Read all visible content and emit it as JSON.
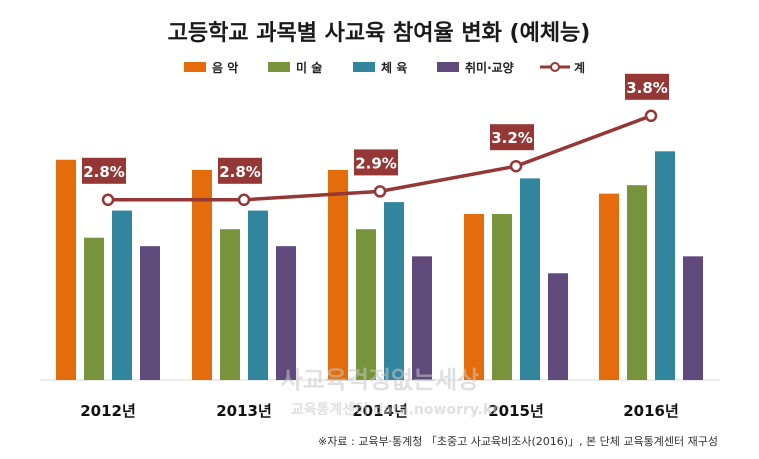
{
  "chart_data": {
    "type": "bar",
    "title": "고등학교 과목별 사교육 참여율 변화 (예체능)",
    "categories": [
      "2012년",
      "2013년",
      "2014년",
      "2015년",
      "2016년"
    ],
    "series": [
      {
        "name": "음 악",
        "color": "#E46C0A",
        "values": [
          13.0,
          12.4,
          12.4,
          9.8,
          11.0
        ]
      },
      {
        "name": "미 술",
        "color": "#77933C",
        "values": [
          8.4,
          8.9,
          8.9,
          9.8,
          11.5
        ]
      },
      {
        "name": "체 육",
        "color": "#31859C",
        "values": [
          10.0,
          10.0,
          10.5,
          11.9,
          13.5
        ]
      },
      {
        "name": "취미·교양",
        "color": "#604A7B",
        "values": [
          7.9,
          7.9,
          7.3,
          6.3,
          7.3
        ]
      }
    ],
    "line": {
      "name": "계",
      "color": "#953735",
      "values": [
        2.8,
        2.8,
        2.9,
        3.2,
        3.8
      ],
      "labels": [
        "2.8%",
        "2.8%",
        "2.9%",
        "3.2%",
        "3.8%"
      ]
    },
    "bar_ylim": [
      0,
      17
    ],
    "line_ylim": [
      0,
      5
    ],
    "legend_position": "top"
  },
  "source": "※자료 : 교육부·통계청 「초중고 사교육비조사(2016)」, 본 단체 교육통계센터 재구성",
  "watermark": {
    "line1": "사교육걱정없는세상",
    "line2": "교육통계센터 data.noworry.kr"
  }
}
